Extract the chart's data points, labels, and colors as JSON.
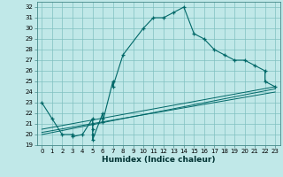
{
  "title": "",
  "xlabel": "Humidex (Indice chaleur)",
  "bg_color": "#c0e8e8",
  "grid_color": "#80c0c0",
  "line_color": "#006868",
  "xlim": [
    -0.5,
    23.5
  ],
  "ylim": [
    19,
    32.5
  ],
  "xticks": [
    0,
    1,
    2,
    3,
    4,
    5,
    6,
    7,
    8,
    9,
    10,
    11,
    12,
    13,
    14,
    15,
    16,
    17,
    18,
    19,
    20,
    21,
    22,
    23
  ],
  "yticks": [
    19,
    20,
    21,
    22,
    23,
    24,
    25,
    26,
    27,
    28,
    29,
    30,
    31,
    32
  ],
  "main_series": [
    [
      0,
      23
    ],
    [
      1,
      21.5
    ],
    [
      2,
      20
    ],
    [
      3,
      20
    ],
    [
      3,
      19.8
    ],
    [
      4,
      20
    ],
    [
      5,
      21.5
    ],
    [
      5,
      21
    ],
    [
      5,
      20.5
    ],
    [
      5,
      20
    ],
    [
      5,
      19.5
    ],
    [
      6,
      22
    ],
    [
      6,
      21.5
    ],
    [
      6,
      21.2
    ],
    [
      7,
      25
    ],
    [
      7,
      24.5
    ],
    [
      8,
      27.5
    ],
    [
      10,
      30
    ],
    [
      11,
      31
    ],
    [
      12,
      31
    ],
    [
      13,
      31.5
    ],
    [
      14,
      32
    ],
    [
      15,
      29.5
    ],
    [
      16,
      29
    ],
    [
      17,
      28
    ],
    [
      18,
      27.5
    ],
    [
      19,
      27
    ],
    [
      20,
      27
    ],
    [
      21,
      26.5
    ],
    [
      22,
      26
    ],
    [
      22,
      25
    ],
    [
      23,
      24.5
    ]
  ],
  "ref_lines": [
    [
      [
        0,
        20.5
      ],
      [
        23,
        24.5
      ]
    ],
    [
      [
        0,
        20.2
      ],
      [
        23,
        24.0
      ]
    ],
    [
      [
        0,
        20.0
      ],
      [
        23,
        24.3
      ]
    ]
  ]
}
